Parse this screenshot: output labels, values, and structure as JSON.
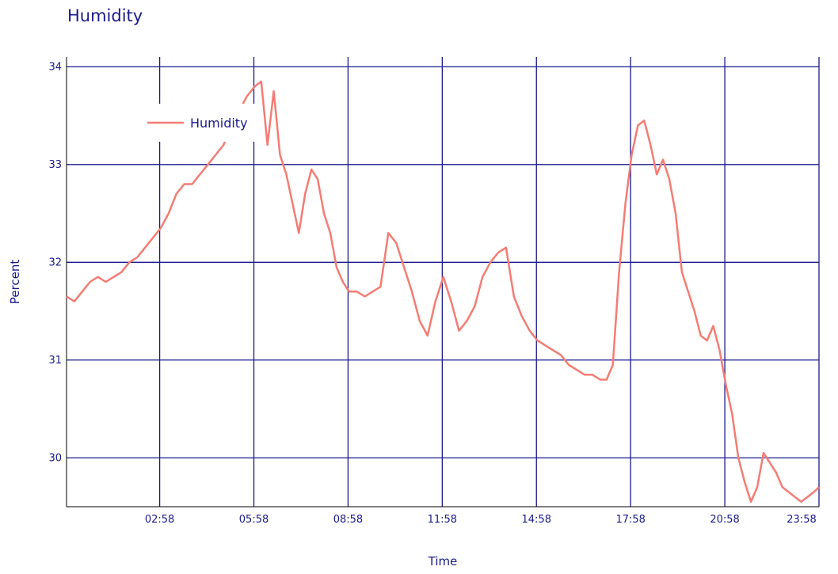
{
  "chart_data": {
    "type": "line",
    "title": "Humidity",
    "xlabel": "Time",
    "ylabel": "Percent",
    "x_tick_labels": [
      "02:58",
      "05:58",
      "08:58",
      "11:58",
      "14:58",
      "17:58",
      "20:58",
      "23:58"
    ],
    "x_ticks_hours": [
      2.967,
      5.967,
      8.967,
      11.967,
      14.967,
      17.967,
      20.967,
      23.967
    ],
    "xlim_hours": [
      0,
      23.967
    ],
    "y_ticks": [
      30,
      31,
      32,
      33,
      34
    ],
    "ylim": [
      29.5,
      34.1
    ],
    "grid": true,
    "legend_position": "top-left",
    "colors": {
      "series": "#f47c74",
      "grid": "#1a1a8c",
      "text": "#1a1a8c"
    },
    "series": [
      {
        "name": "Humidity",
        "x_hours": [
          0.0,
          0.25,
          0.5,
          0.75,
          1.0,
          1.25,
          1.5,
          1.75,
          2.0,
          2.25,
          2.5,
          2.75,
          3.0,
          3.25,
          3.5,
          3.75,
          4.0,
          4.25,
          4.5,
          4.75,
          5.0,
          5.25,
          5.5,
          5.75,
          6.0,
          6.2,
          6.4,
          6.6,
          6.8,
          7.0,
          7.2,
          7.4,
          7.6,
          7.8,
          8.0,
          8.2,
          8.4,
          8.6,
          8.8,
          9.0,
          9.25,
          9.5,
          9.75,
          10.0,
          10.25,
          10.5,
          10.75,
          11.0,
          11.25,
          11.5,
          11.75,
          12.0,
          12.25,
          12.5,
          12.75,
          13.0,
          13.25,
          13.5,
          13.75,
          14.0,
          14.25,
          14.5,
          14.75,
          15.0,
          15.25,
          15.5,
          15.75,
          16.0,
          16.25,
          16.5,
          16.75,
          17.0,
          17.2,
          17.4,
          17.6,
          17.8,
          18.0,
          18.2,
          18.4,
          18.6,
          18.8,
          19.0,
          19.2,
          19.4,
          19.6,
          19.8,
          20.0,
          20.2,
          20.4,
          20.6,
          20.8,
          21.0,
          21.2,
          21.4,
          21.6,
          21.8,
          22.0,
          22.2,
          22.4,
          22.6,
          22.8,
          23.0,
          23.2,
          23.4,
          23.6,
          23.8,
          23.967
        ],
        "values": [
          31.65,
          31.6,
          31.7,
          31.8,
          31.85,
          31.8,
          31.85,
          31.9,
          32.0,
          32.05,
          32.15,
          32.25,
          32.35,
          32.5,
          32.7,
          32.8,
          32.8,
          32.9,
          33.0,
          33.1,
          33.2,
          33.4,
          33.55,
          33.7,
          33.8,
          33.85,
          33.2,
          33.75,
          33.1,
          32.9,
          32.6,
          32.3,
          32.7,
          32.95,
          32.85,
          32.5,
          32.3,
          31.95,
          31.8,
          31.7,
          31.7,
          31.65,
          31.7,
          31.75,
          32.3,
          32.2,
          31.95,
          31.7,
          31.4,
          31.25,
          31.6,
          31.85,
          31.6,
          31.3,
          31.4,
          31.55,
          31.85,
          32.0,
          32.1,
          32.15,
          31.65,
          31.45,
          31.3,
          31.2,
          31.15,
          31.1,
          31.05,
          30.95,
          30.9,
          30.85,
          30.85,
          30.8,
          30.8,
          30.95,
          31.9,
          32.6,
          33.1,
          33.4,
          33.45,
          33.2,
          32.9,
          33.05,
          32.85,
          32.5,
          31.9,
          31.7,
          31.5,
          31.25,
          31.2,
          31.35,
          31.1,
          30.75,
          30.45,
          30.0,
          29.75,
          29.55,
          29.7,
          30.05,
          29.95,
          29.85,
          29.7,
          29.65,
          29.6,
          29.55,
          29.6,
          29.65,
          29.7
        ]
      }
    ]
  }
}
